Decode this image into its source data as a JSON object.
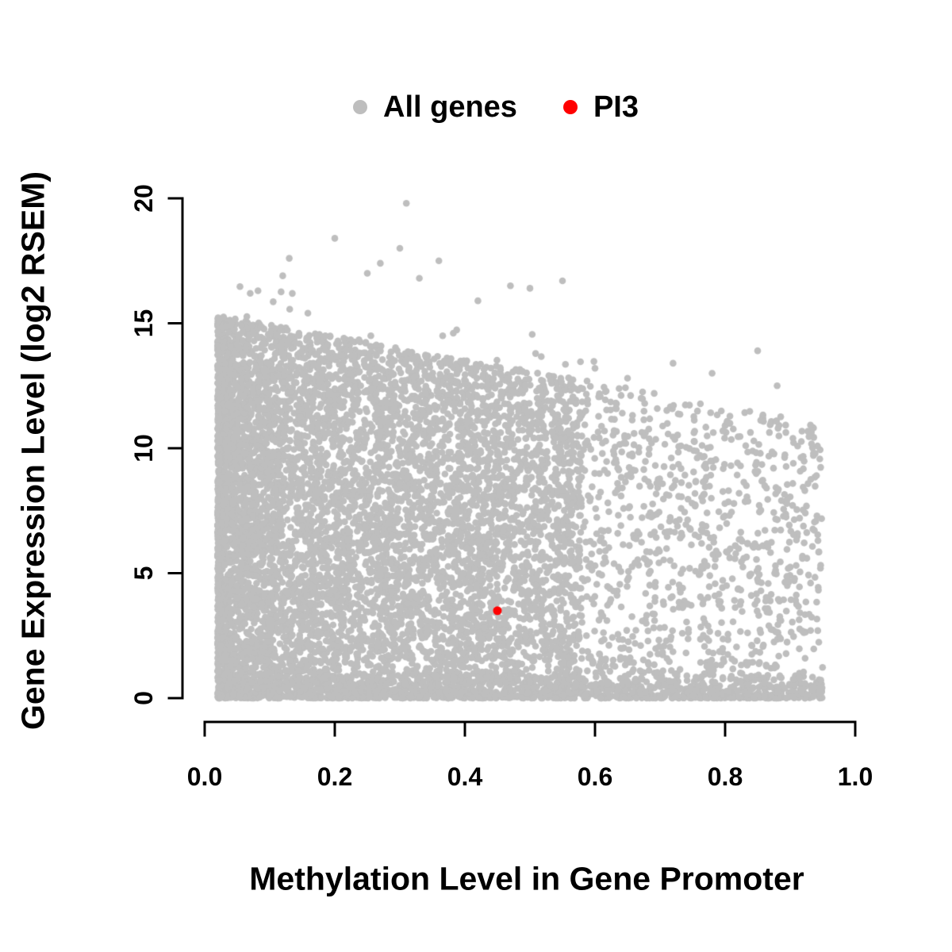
{
  "chart_data": {
    "type": "scatter",
    "title": "",
    "xlabel": "Methylation Level in Gene Promoter",
    "ylabel": "Gene Expression Level (log2 RSEM)",
    "xlim": [
      0.0,
      1.0
    ],
    "ylim": [
      0,
      20
    ],
    "grid": false,
    "legend_position": "top-center-horizontal",
    "xticks": [
      {
        "v": 0.0,
        "label": "0.0"
      },
      {
        "v": 0.2,
        "label": "0.2"
      },
      {
        "v": 0.4,
        "label": "0.4"
      },
      {
        "v": 0.6,
        "label": "0.6"
      },
      {
        "v": 0.8,
        "label": "0.8"
      },
      {
        "v": 1.0,
        "label": "1.0"
      }
    ],
    "yticks": [
      {
        "v": 0,
        "label": "0"
      },
      {
        "v": 5,
        "label": "5"
      },
      {
        "v": 10,
        "label": "10"
      },
      {
        "v": 15,
        "label": "15"
      },
      {
        "v": 20,
        "label": "20"
      }
    ],
    "legend": [
      {
        "label": "All genes",
        "color": "#bebebe"
      },
      {
        "label": "PI3",
        "color": "#ff0000"
      }
    ],
    "series": [
      {
        "name": "All genes",
        "color": "#bebebe",
        "marker_radius": 4.3,
        "generator": {
          "seed": 1337,
          "n": 9500,
          "xmin": 0.02,
          "xmax": 0.95,
          "envelope": {
            "a": 15.4,
            "b": -4.6
          },
          "weights": {
            "dense": 0.62,
            "spread": 0.27,
            "floor": 0.11
          },
          "dense_span": 0.56,
          "dense_pow": 1.7,
          "spread_pow": 1.05,
          "floor_height": 0.9,
          "outliers": 20,
          "outlier_extra": 1.6,
          "extra_points": [
            [
              0.31,
              19.8
            ],
            [
              0.2,
              18.4
            ],
            [
              0.13,
              17.6
            ],
            [
              0.27,
              17.4
            ],
            [
              0.36,
              17.5
            ],
            [
              0.47,
              16.5
            ],
            [
              0.55,
              16.7
            ],
            [
              0.12,
              16.9
            ],
            [
              0.3,
              18.0
            ],
            [
              0.25,
              17.0
            ],
            [
              0.07,
              16.2
            ],
            [
              0.33,
              16.8
            ],
            [
              0.42,
              15.9
            ],
            [
              0.5,
              16.4
            ],
            [
              0.85,
              13.9
            ],
            [
              0.78,
              13.0
            ],
            [
              0.72,
              13.4
            ],
            [
              0.65,
              12.8
            ],
            [
              0.6,
              13.2
            ],
            [
              0.88,
              12.5
            ]
          ]
        }
      },
      {
        "name": "PI3",
        "color": "#ff0000",
        "marker_radius": 5.5,
        "points": [
          [
            0.45,
            3.5
          ]
        ]
      }
    ]
  }
}
